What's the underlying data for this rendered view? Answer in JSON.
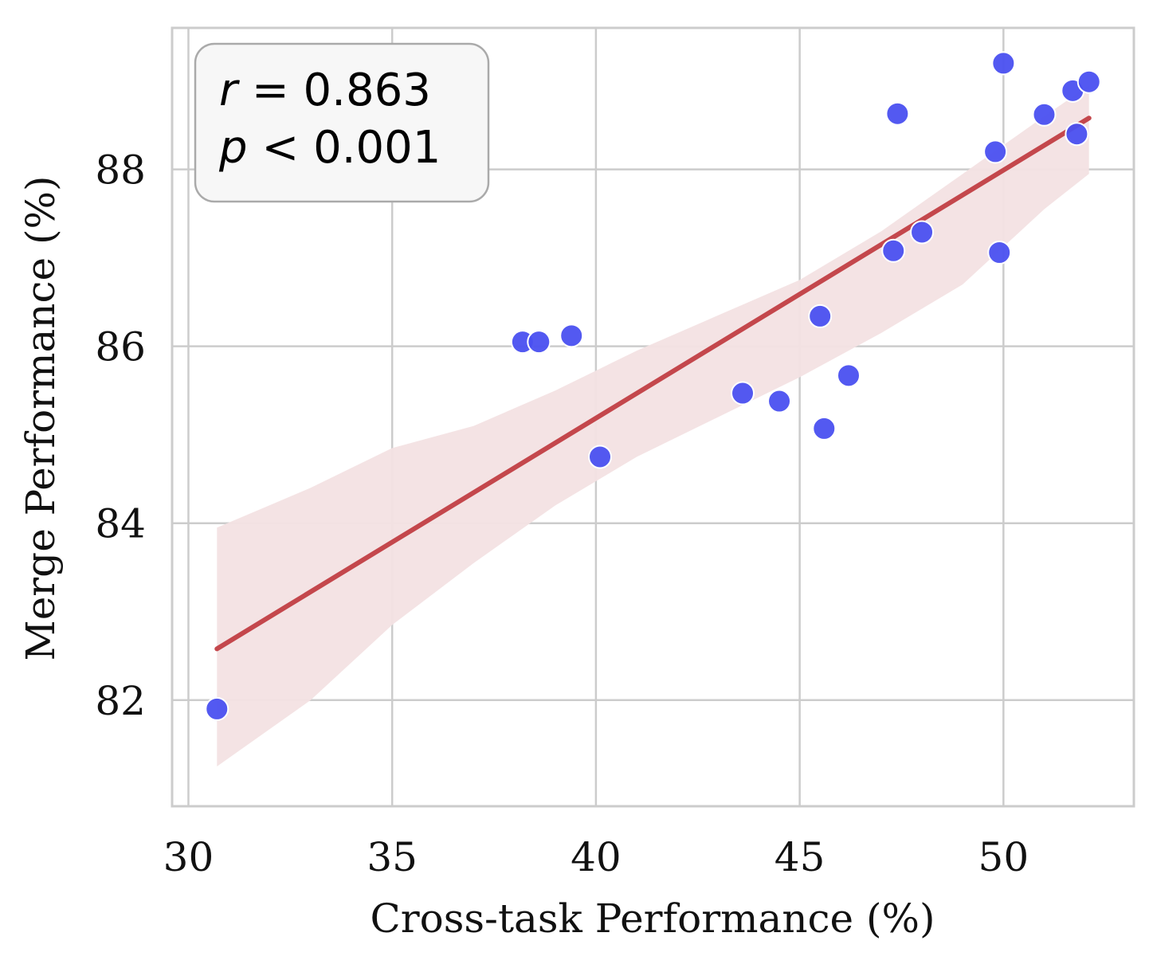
{
  "chart_data": {
    "type": "scatter",
    "xlabel": "Cross-task Performance (%)",
    "ylabel": "Merge Performance (%)",
    "xlim": [
      29.6,
      53.2
    ],
    "ylim": [
      80.8,
      89.6
    ],
    "xticks": [
      30,
      35,
      40,
      45,
      50
    ],
    "yticks": [
      82,
      84,
      86,
      88
    ],
    "xtick_labels": [
      "30",
      "35",
      "40",
      "45",
      "50"
    ],
    "ytick_labels": [
      "82",
      "84",
      "86",
      "88"
    ],
    "grid": true,
    "annotation": {
      "r_symbol": "r",
      "r_text": " = 0.863",
      "p_symbol": "p",
      "p_text": " < 0.001",
      "placement": "top-left"
    },
    "points": [
      {
        "x": 30.7,
        "y": 81.9
      },
      {
        "x": 38.2,
        "y": 86.05
      },
      {
        "x": 38.6,
        "y": 86.05
      },
      {
        "x": 39.4,
        "y": 86.12
      },
      {
        "x": 40.1,
        "y": 84.75
      },
      {
        "x": 43.6,
        "y": 85.47
      },
      {
        "x": 44.5,
        "y": 85.38
      },
      {
        "x": 45.5,
        "y": 86.34
      },
      {
        "x": 45.6,
        "y": 85.07
      },
      {
        "x": 46.2,
        "y": 85.67
      },
      {
        "x": 47.3,
        "y": 87.08
      },
      {
        "x": 47.4,
        "y": 88.63
      },
      {
        "x": 48.0,
        "y": 87.29
      },
      {
        "x": 49.8,
        "y": 88.2
      },
      {
        "x": 49.9,
        "y": 87.06
      },
      {
        "x": 50.0,
        "y": 89.2
      },
      {
        "x": 51.0,
        "y": 88.62
      },
      {
        "x": 51.7,
        "y": 88.89
      },
      {
        "x": 51.8,
        "y": 88.4
      },
      {
        "x": 52.1,
        "y": 88.99
      }
    ],
    "regression": {
      "x_start": 30.7,
      "y_start": 82.58,
      "x_end": 52.1,
      "y_end": 88.58
    },
    "confidence_band": {
      "x": [
        30.7,
        33.0,
        35.0,
        37.0,
        39.0,
        41.0,
        43.0,
        45.0,
        47.0,
        49.0,
        51.0,
        52.1
      ],
      "lower": [
        81.25,
        82.0,
        82.85,
        83.55,
        84.2,
        84.75,
        85.2,
        85.65,
        86.15,
        86.7,
        87.55,
        87.95
      ],
      "upper": [
        83.95,
        84.4,
        84.85,
        85.1,
        85.5,
        85.95,
        86.35,
        86.75,
        87.3,
        87.95,
        88.6,
        88.95
      ]
    },
    "colors": {
      "points": "#4a50f0",
      "point_edge": "#ffffff",
      "regression_line": "#c4474c",
      "confidence_band": "#f3e1e3",
      "grid": "#cccccc",
      "frame": "#cccccc",
      "annotation_box_fill": "#f7f7f7",
      "annotation_box_edge": "#aaaaaa"
    }
  }
}
